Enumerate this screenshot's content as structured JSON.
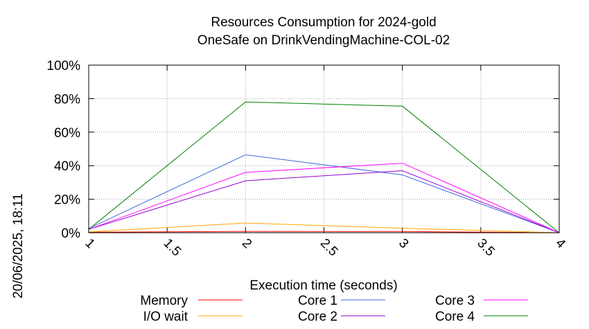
{
  "chart_data": {
    "type": "line",
    "title": "Resources Consumption for 2024-gold",
    "subtitle": "OneSafe on DrinkVendingMachine-COL-02",
    "xlabel": "Execution time (seconds)",
    "ylabel": "",
    "side_label": "20/06/2025, 18:11",
    "xlim": [
      1,
      4
    ],
    "ylim": [
      0,
      100
    ],
    "x_ticks": [
      "1",
      "1.5",
      "2",
      "2.5",
      "3",
      "3.5",
      "4"
    ],
    "y_ticks": [
      "0%",
      "20%",
      "40%",
      "60%",
      "80%",
      "100%"
    ],
    "grid": true,
    "legend_position": "bottom",
    "x": [
      1,
      2,
      3,
      4
    ],
    "series": [
      {
        "name": "Memory",
        "color": "#ff0000",
        "values": [
          0.3,
          0.8,
          0.7,
          0
        ]
      },
      {
        "name": "I/O wait",
        "color": "#ffa500",
        "values": [
          0.5,
          5.8,
          2.7,
          0
        ]
      },
      {
        "name": "Core 1",
        "color": "#4169e1",
        "values": [
          2.5,
          46.5,
          34.5,
          0
        ]
      },
      {
        "name": "Core 2",
        "color": "#9400d3",
        "values": [
          2,
          31,
          37,
          0
        ]
      },
      {
        "name": "Core 3",
        "color": "#ff00ff",
        "values": [
          2,
          36,
          41.5,
          0
        ]
      },
      {
        "name": "Core 4",
        "color": "#008000",
        "values": [
          2,
          78,
          75.5,
          0
        ]
      }
    ]
  }
}
